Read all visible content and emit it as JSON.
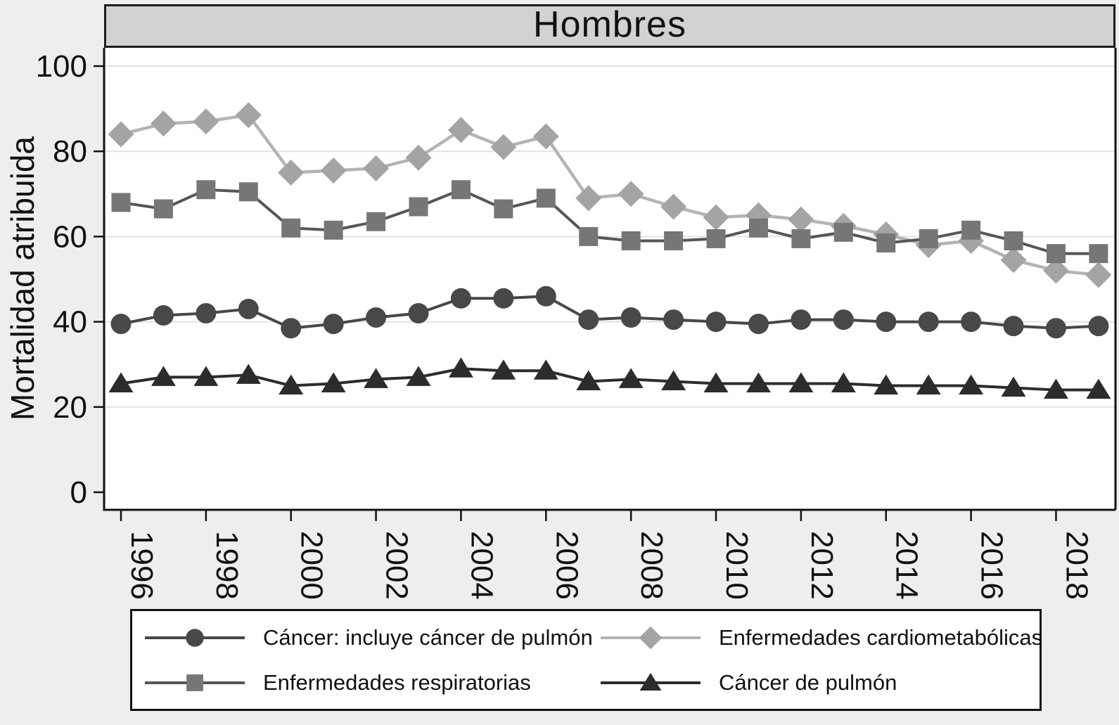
{
  "title": "Hombres",
  "y_axis": {
    "label": "Mortalidad atribuida",
    "ticks": [
      0,
      20,
      40,
      60,
      80,
      100
    ]
  },
  "x_axis": {
    "tick_years": [
      1996,
      1998,
      2000,
      2002,
      2004,
      2006,
      2008,
      2010,
      2012,
      2014,
      2016,
      2018
    ]
  },
  "colors": {
    "figure_background": "#eeeeee",
    "banner_fill": "#d2d2d2",
    "plot_background": "#ffffff",
    "gridline": "#e3e3e3",
    "axis": "#111111",
    "legend_background": "#ffffff"
  },
  "legend": {
    "items": [
      {
        "label": "Cáncer: incluye cáncer de pulmón",
        "series": 2
      },
      {
        "label": "Enfermedades cardiometabólicas",
        "series": 0
      },
      {
        "label": "Enfermedades respiratorias",
        "series": 1
      },
      {
        "label": "Cáncer de pulmón",
        "series": 3
      }
    ]
  },
  "chart_data": {
    "type": "line",
    "title": "Hombres",
    "xlabel": "",
    "ylabel": "Mortalidad atribuida",
    "ylim": [
      0,
      100
    ],
    "xlim": [
      1996,
      2019
    ],
    "grid": "horizontal",
    "legend_position": "bottom",
    "x_tick_rotation": 90,
    "x": [
      1996,
      1997,
      1998,
      1999,
      2000,
      2001,
      2002,
      2003,
      2004,
      2005,
      2006,
      2007,
      2008,
      2009,
      2010,
      2011,
      2012,
      2013,
      2014,
      2015,
      2016,
      2017,
      2018,
      2019
    ],
    "series": [
      {
        "name": "Enfermedades cardiometabólicas",
        "marker": "diamond",
        "marker_color": "#a4a4a4",
        "line_color": "#b4b4b4",
        "values": [
          84,
          86.5,
          87,
          88.5,
          75,
          75.5,
          76,
          78.5,
          85,
          81,
          83.5,
          69,
          70,
          67,
          64.5,
          65,
          64,
          62.5,
          60.5,
          58,
          59,
          54.5,
          52,
          51
        ]
      },
      {
        "name": "Enfermedades respiratorias",
        "marker": "square",
        "marker_color": "#767676",
        "line_color": "#565656",
        "values": [
          68,
          66.5,
          71,
          70.5,
          62,
          61.5,
          63.5,
          67,
          71,
          66.5,
          69,
          60,
          59,
          59,
          59.5,
          62,
          59.5,
          61,
          58.5,
          59.5,
          61.5,
          59,
          56,
          56
        ]
      },
      {
        "name": "Cáncer: incluye cáncer de pulmón",
        "marker": "circle",
        "marker_color": "#484848",
        "line_color": "#474747",
        "values": [
          39.5,
          41.5,
          42,
          43,
          38.5,
          39.5,
          41,
          42,
          45.5,
          45.5,
          46,
          40.5,
          41,
          40.5,
          40,
          39.5,
          40.5,
          40.5,
          40,
          40,
          40,
          39,
          38.5,
          39
        ]
      },
      {
        "name": "Cáncer de pulmón",
        "marker": "triangle",
        "marker_color": "#2c2c2c",
        "line_color": "#2c2c2c",
        "values": [
          25.5,
          27,
          27,
          27.5,
          25,
          25.5,
          26.5,
          27,
          29,
          28.5,
          28.5,
          26,
          26.5,
          26,
          25.5,
          25.5,
          25.5,
          25.5,
          25,
          25,
          25,
          24.5,
          24,
          24
        ]
      }
    ]
  }
}
